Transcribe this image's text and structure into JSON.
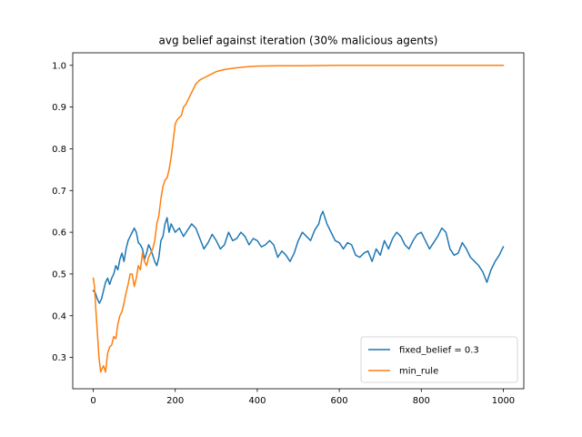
{
  "chart_data": {
    "type": "line",
    "title": "avg belief against iteration (30% malicious agents)",
    "xlabel": "",
    "ylabel": "",
    "xlim": [
      -50,
      1050
    ],
    "ylim": [
      0.225,
      1.03
    ],
    "xticks": [
      0,
      200,
      400,
      600,
      800,
      1000
    ],
    "xtick_labels": [
      "0",
      "200",
      "400",
      "600",
      "800",
      "1000"
    ],
    "yticks": [
      0.3,
      0.4,
      0.5,
      0.6,
      0.7,
      0.8,
      0.9,
      1.0
    ],
    "ytick_labels": [
      "0.3",
      "0.4",
      "0.5",
      "0.6",
      "0.7",
      "0.8",
      "0.9",
      "1.0"
    ],
    "grid": false,
    "legend_position": "lower-right",
    "series": [
      {
        "name": "fixed_belief = 0.3",
        "color": "#1f77b4",
        "x": [
          0,
          5,
          10,
          15,
          20,
          25,
          30,
          35,
          40,
          45,
          50,
          55,
          60,
          65,
          70,
          75,
          80,
          85,
          90,
          95,
          100,
          105,
          110,
          115,
          120,
          125,
          130,
          135,
          140,
          145,
          150,
          155,
          160,
          165,
          170,
          175,
          180,
          185,
          190,
          195,
          200,
          210,
          220,
          230,
          240,
          250,
          260,
          270,
          280,
          290,
          300,
          310,
          320,
          330,
          340,
          350,
          360,
          370,
          380,
          390,
          400,
          410,
          420,
          430,
          440,
          450,
          460,
          470,
          480,
          490,
          500,
          510,
          520,
          530,
          540,
          550,
          555,
          560,
          570,
          580,
          590,
          600,
          610,
          620,
          630,
          640,
          650,
          660,
          670,
          680,
          690,
          700,
          710,
          720,
          730,
          740,
          750,
          760,
          770,
          780,
          790,
          800,
          810,
          820,
          830,
          840,
          850,
          860,
          870,
          880,
          890,
          900,
          910,
          920,
          930,
          940,
          950,
          960,
          970,
          980,
          990,
          1000
        ],
        "y": [
          0.46,
          0.455,
          0.44,
          0.43,
          0.44,
          0.46,
          0.48,
          0.49,
          0.475,
          0.49,
          0.5,
          0.52,
          0.51,
          0.535,
          0.55,
          0.53,
          0.56,
          0.58,
          0.59,
          0.6,
          0.61,
          0.6,
          0.575,
          0.57,
          0.56,
          0.535,
          0.55,
          0.57,
          0.56,
          0.545,
          0.53,
          0.52,
          0.54,
          0.58,
          0.59,
          0.62,
          0.635,
          0.6,
          0.62,
          0.61,
          0.6,
          0.61,
          0.59,
          0.605,
          0.62,
          0.61,
          0.585,
          0.56,
          0.575,
          0.595,
          0.58,
          0.56,
          0.57,
          0.6,
          0.58,
          0.585,
          0.6,
          0.59,
          0.57,
          0.585,
          0.58,
          0.565,
          0.57,
          0.58,
          0.57,
          0.54,
          0.555,
          0.545,
          0.53,
          0.55,
          0.58,
          0.6,
          0.59,
          0.58,
          0.605,
          0.62,
          0.64,
          0.65,
          0.62,
          0.6,
          0.58,
          0.575,
          0.56,
          0.575,
          0.57,
          0.545,
          0.54,
          0.55,
          0.555,
          0.53,
          0.56,
          0.545,
          0.58,
          0.56,
          0.585,
          0.6,
          0.59,
          0.57,
          0.56,
          0.58,
          0.595,
          0.6,
          0.58,
          0.56,
          0.575,
          0.59,
          0.61,
          0.6,
          0.56,
          0.545,
          0.55,
          0.575,
          0.56,
          0.54,
          0.53,
          0.52,
          0.505,
          0.48,
          0.51,
          0.53,
          0.545,
          0.565
        ]
      },
      {
        "name": "min_rule",
        "color": "#ff7f0e",
        "x": [
          0,
          3,
          6,
          10,
          14,
          18,
          20,
          25,
          30,
          35,
          40,
          45,
          50,
          55,
          60,
          65,
          70,
          75,
          80,
          85,
          90,
          95,
          100,
          105,
          110,
          115,
          120,
          125,
          130,
          135,
          140,
          145,
          150,
          155,
          160,
          165,
          170,
          175,
          180,
          185,
          190,
          195,
          200,
          205,
          210,
          215,
          220,
          225,
          230,
          240,
          250,
          260,
          270,
          280,
          290,
          300,
          320,
          340,
          360,
          380,
          400,
          450,
          500,
          600,
          700,
          800,
          900,
          1000
        ],
        "y": [
          0.49,
          0.47,
          0.42,
          0.36,
          0.3,
          0.265,
          0.27,
          0.28,
          0.265,
          0.31,
          0.325,
          0.33,
          0.35,
          0.345,
          0.38,
          0.4,
          0.41,
          0.43,
          0.455,
          0.475,
          0.5,
          0.5,
          0.47,
          0.49,
          0.52,
          0.51,
          0.55,
          0.53,
          0.52,
          0.54,
          0.55,
          0.56,
          0.58,
          0.62,
          0.64,
          0.68,
          0.71,
          0.725,
          0.73,
          0.75,
          0.78,
          0.82,
          0.86,
          0.87,
          0.875,
          0.88,
          0.9,
          0.905,
          0.915,
          0.935,
          0.955,
          0.965,
          0.97,
          0.975,
          0.98,
          0.985,
          0.99,
          0.993,
          0.995,
          0.997,
          0.998,
          0.999,
          0.999,
          1.0,
          1.0,
          1.0,
          1.0,
          1.0
        ]
      }
    ]
  }
}
